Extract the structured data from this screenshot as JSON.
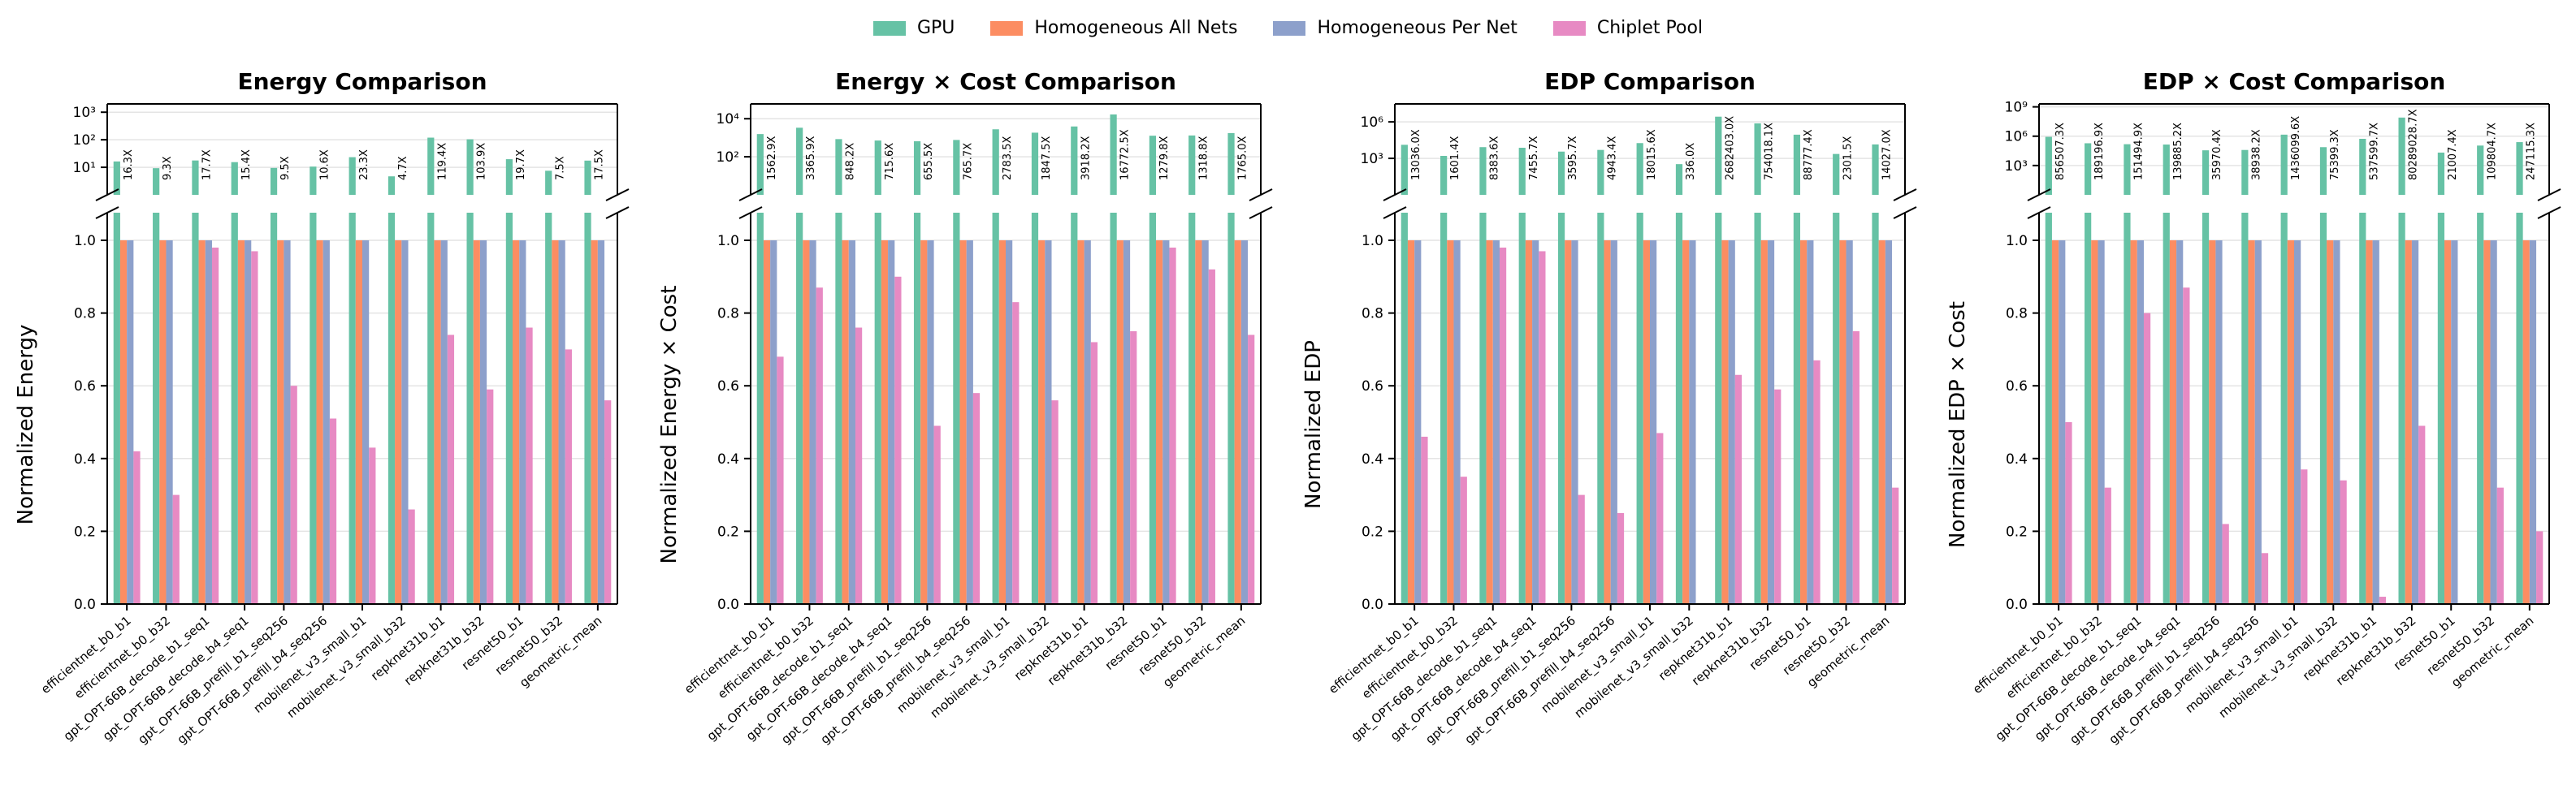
{
  "legend": [
    {
      "label": "GPU",
      "color": "#66c2a5"
    },
    {
      "label": "Homogeneous All Nets",
      "color": "#fc8d62"
    },
    {
      "label": "Homogeneous Per Net",
      "color": "#8da0cb"
    },
    {
      "label": "Chiplet Pool",
      "color": "#e78ac3"
    }
  ],
  "chart_data": [
    {
      "type": "bar",
      "title": "Energy Comparison",
      "ylabel": "Normalized Energy",
      "categories": [
        "efficientnet_b0_b1",
        "efficientnet_b0_b32",
        "gpt_OPT-66B_decode_b1_seq1",
        "gpt_OPT-66B_decode_b4_seq1",
        "gpt_OPT-66B_prefill_b1_seq256",
        "gpt_OPT-66B_prefill_b4_seq256",
        "mobilenet_v3_small_b1",
        "mobilenet_v3_small_b32",
        "repknet31b_b1",
        "repknet31b_b32",
        "resnet50_b1",
        "resnet50_b32",
        "geometric_mean"
      ],
      "ylim": [
        0,
        1.0
      ],
      "yticks": [
        "0.0",
        "0.2",
        "0.4",
        "0.6",
        "0.8",
        "1.0"
      ],
      "top_log_ticks": [
        {
          "value": 10,
          "label": "10¹"
        },
        {
          "value": 100,
          "label": "10²"
        },
        {
          "value": 1000,
          "label": "10³"
        }
      ],
      "top_log_range": [
        1,
        2000
      ],
      "gpu_labels": [
        "16.3X",
        "9.3X",
        "17.7X",
        "15.4X",
        "9.5X",
        "10.6X",
        "23.3X",
        "4.7X",
        "119.4X",
        "103.9X",
        "19.7X",
        "7.5X",
        "17.5X"
      ],
      "series": [
        {
          "name": "GPU",
          "values": [
            16.3,
            9.3,
            17.7,
            15.4,
            9.5,
            10.6,
            23.3,
            4.7,
            119.4,
            103.9,
            19.7,
            7.5,
            17.5
          ]
        },
        {
          "name": "Homogeneous All Nets",
          "values": [
            1,
            1,
            1,
            1,
            1,
            1,
            1,
            1,
            1,
            1,
            1,
            1,
            1
          ]
        },
        {
          "name": "Homogeneous Per Net",
          "values": [
            1,
            1,
            1,
            1,
            1,
            1,
            1,
            1,
            1,
            1,
            1,
            1,
            1
          ]
        },
        {
          "name": "Chiplet Pool",
          "values": [
            0.42,
            0.3,
            0.98,
            0.97,
            0.6,
            0.51,
            0.43,
            0.26,
            0.74,
            0.59,
            0.76,
            0.7,
            0.56
          ]
        }
      ]
    },
    {
      "type": "bar",
      "title": "Energy × Cost Comparison",
      "ylabel": "Normalized Energy × Cost",
      "categories": [
        "efficientnet_b0_b1",
        "efficientnet_b0_b32",
        "gpt_OPT-66B_decode_b1_seq1",
        "gpt_OPT-66B_decode_b4_seq1",
        "gpt_OPT-66B_prefill_b1_seq256",
        "gpt_OPT-66B_prefill_b4_seq256",
        "mobilenet_v3_small_b1",
        "mobilenet_v3_small_b32",
        "repknet31b_b1",
        "repknet31b_b32",
        "resnet50_b1",
        "resnet50_b32",
        "geometric_mean"
      ],
      "ylim": [
        0,
        1.0
      ],
      "yticks": [
        "0.0",
        "0.2",
        "0.4",
        "0.6",
        "0.8",
        "1.0"
      ],
      "top_log_ticks": [
        {
          "value": 100,
          "label": "10²"
        },
        {
          "value": 10000,
          "label": "10⁴"
        }
      ],
      "top_log_range": [
        1,
        60000
      ],
      "gpu_labels": [
        "1562.9X",
        "3365.9X",
        "848.2X",
        "715.6X",
        "655.5X",
        "765.7X",
        "2783.5X",
        "1847.5X",
        "3918.2X",
        "16772.5X",
        "1279.8X",
        "1318.8X",
        "1765.0X"
      ],
      "series": [
        {
          "name": "GPU",
          "values": [
            1562.9,
            3365.9,
            848.2,
            715.6,
            655.5,
            765.7,
            2783.5,
            1847.5,
            3918.2,
            16772.5,
            1279.8,
            1318.8,
            1765.0
          ]
        },
        {
          "name": "Homogeneous All Nets",
          "values": [
            1,
            1,
            1,
            1,
            1,
            1,
            1,
            1,
            1,
            1,
            1,
            1,
            1
          ]
        },
        {
          "name": "Homogeneous Per Net",
          "values": [
            1,
            1,
            1,
            1,
            1,
            1,
            1,
            1,
            1,
            1,
            1,
            1,
            1
          ]
        },
        {
          "name": "Chiplet Pool",
          "values": [
            0.68,
            0.87,
            0.76,
            0.9,
            0.49,
            0.58,
            0.83,
            0.56,
            0.72,
            0.75,
            0.98,
            0.92,
            0.74
          ]
        }
      ]
    },
    {
      "type": "bar",
      "title": "EDP Comparison",
      "ylabel": "Normalized EDP",
      "categories": [
        "efficientnet_b0_b1",
        "efficientnet_b0_b32",
        "gpt_OPT-66B_decode_b1_seq1",
        "gpt_OPT-66B_decode_b4_seq1",
        "gpt_OPT-66B_prefill_b1_seq256",
        "gpt_OPT-66B_prefill_b4_seq256",
        "mobilenet_v3_small_b1",
        "mobilenet_v3_small_b32",
        "repknet31b_b1",
        "repknet31b_b32",
        "resnet50_b1",
        "resnet50_b32",
        "geometric_mean"
      ],
      "ylim": [
        0,
        1.0
      ],
      "yticks": [
        "0.0",
        "0.2",
        "0.4",
        "0.6",
        "0.8",
        "1.0"
      ],
      "top_log_ticks": [
        {
          "value": 1000,
          "label": "10³"
        },
        {
          "value": 1000000,
          "label": "10⁶"
        }
      ],
      "top_log_range": [
        1,
        30000000
      ],
      "gpu_labels": [
        "13036.0X",
        "1601.4X",
        "8383.6X",
        "7455.7X",
        "3595.7X",
        "4943.4X",
        "18015.6X",
        "336.0X",
        "2682403.0X",
        "754018.1X",
        "88777.4X",
        "2301.5X",
        "14027.0X"
      ],
      "series": [
        {
          "name": "GPU",
          "values": [
            13036.0,
            1601.4,
            8383.6,
            7455.7,
            3595.7,
            4943.4,
            18015.6,
            336.0,
            2682403.0,
            754018.1,
            88777.4,
            2301.5,
            14027.0
          ]
        },
        {
          "name": "Homogeneous All Nets",
          "values": [
            1,
            1,
            1,
            1,
            1,
            1,
            1,
            1,
            1,
            1,
            1,
            1,
            1
          ]
        },
        {
          "name": "Homogeneous Per Net",
          "values": [
            1,
            1,
            1,
            1,
            1,
            1,
            1,
            1,
            1,
            1,
            1,
            1,
            1
          ]
        },
        {
          "name": "Chiplet Pool",
          "values": [
            0.46,
            0.35,
            0.98,
            0.97,
            0.3,
            0.25,
            0.47,
            0.0,
            0.63,
            0.59,
            0.67,
            0.75,
            0.32
          ]
        }
      ]
    },
    {
      "type": "bar",
      "title": "EDP × Cost Comparison",
      "ylabel": "Normalized EDP × Cost",
      "categories": [
        "efficientnet_b0_b1",
        "efficientnet_b0_b32",
        "gpt_OPT-66B_decode_b1_seq1",
        "gpt_OPT-66B_decode_b4_seq1",
        "gpt_OPT-66B_prefill_b1_seq256",
        "gpt_OPT-66B_prefill_b4_seq256",
        "mobilenet_v3_small_b1",
        "mobilenet_v3_small_b32",
        "repknet31b_b1",
        "repknet31b_b32",
        "resnet50_b1",
        "resnet50_b32",
        "geometric_mean"
      ],
      "ylim": [
        0,
        1.0
      ],
      "yticks": [
        "0.0",
        "0.2",
        "0.4",
        "0.6",
        "0.8",
        "1.0"
      ],
      "top_log_ticks": [
        {
          "value": 1000,
          "label": "10³"
        },
        {
          "value": 1000000,
          "label": "10⁶"
        },
        {
          "value": 1000000000,
          "label": "10⁹"
        }
      ],
      "top_log_range": [
        1,
        2000000000
      ],
      "gpu_labels": [
        "856507.3X",
        "189196.9X",
        "151494.9X",
        "139885.2X",
        "35970.4X",
        "38938.2X",
        "1436099.6X",
        "75399.3X",
        "537599.7X",
        "80289028.7X",
        "21007.4X",
        "109804.7X",
        "247115.3X"
      ],
      "series": [
        {
          "name": "GPU",
          "values": [
            856507.3,
            189196.9,
            151494.9,
            139885.2,
            35970.4,
            38938.2,
            1436099.6,
            75399.3,
            537599.7,
            80289028.7,
            21007.4,
            109804.7,
            247115.3
          ]
        },
        {
          "name": "Homogeneous All Nets",
          "values": [
            1,
            1,
            1,
            1,
            1,
            1,
            1,
            1,
            1,
            1,
            1,
            1,
            1
          ]
        },
        {
          "name": "Homogeneous Per Net",
          "values": [
            1,
            1,
            1,
            1,
            1,
            1,
            1,
            1,
            1,
            1,
            1,
            1,
            1
          ]
        },
        {
          "name": "Chiplet Pool",
          "values": [
            0.5,
            0.32,
            0.8,
            0.87,
            0.22,
            0.14,
            0.37,
            0.34,
            0.02,
            0.49,
            0.0,
            0.32,
            0.2
          ]
        }
      ]
    }
  ]
}
